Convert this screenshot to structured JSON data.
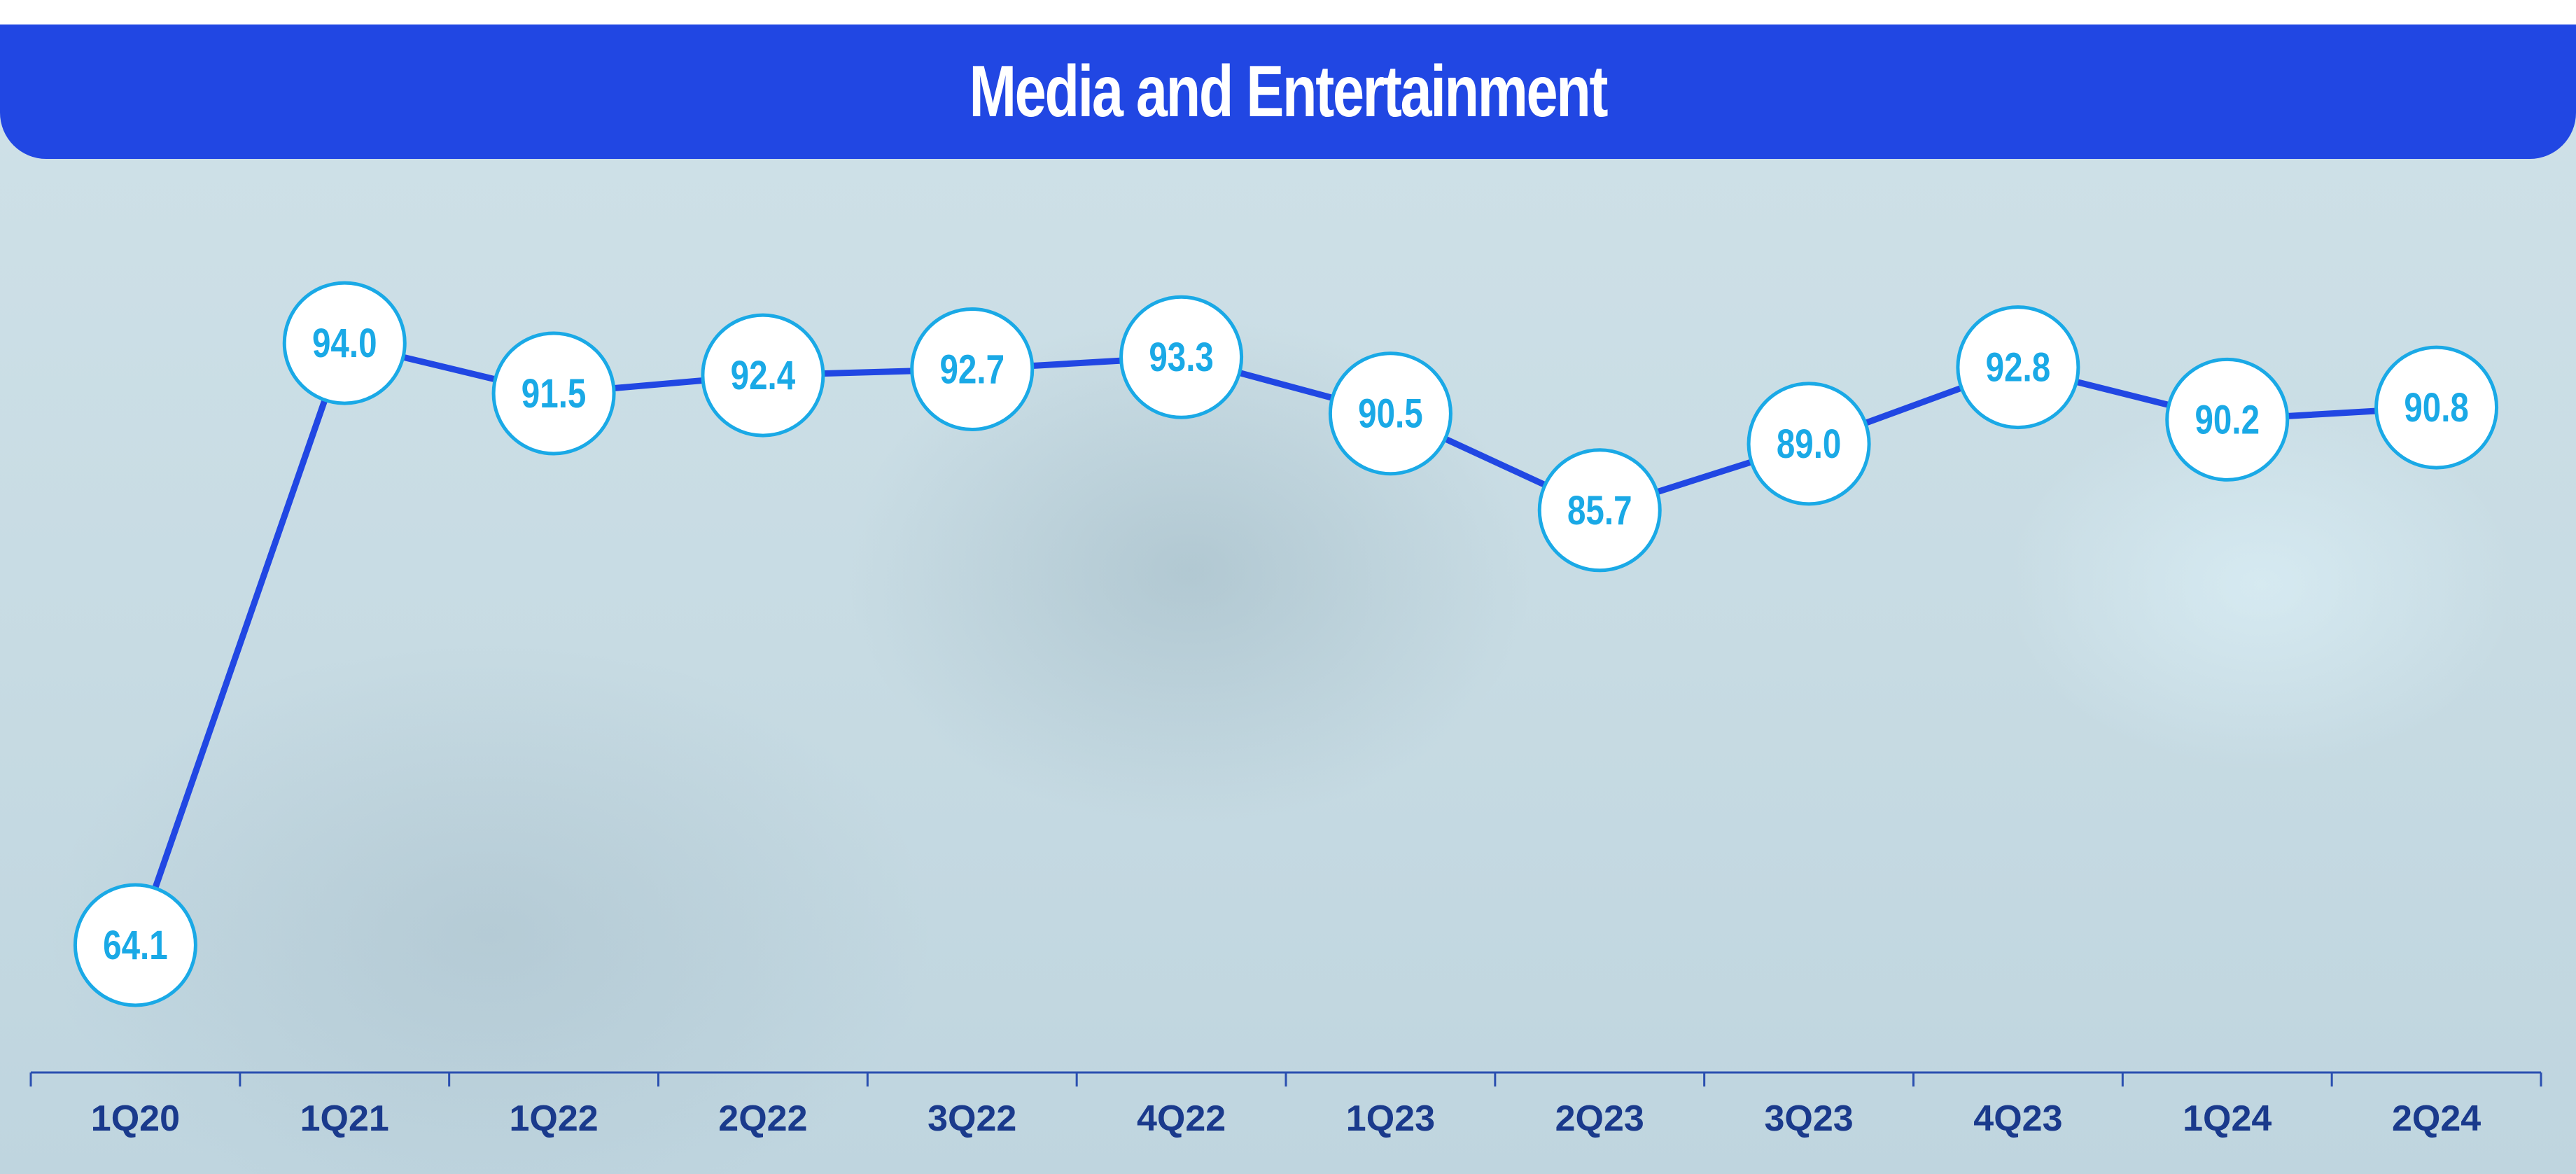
{
  "chart_data": {
    "type": "line",
    "title": "Media and Entertainment",
    "categories": [
      "1Q20",
      "1Q21",
      "1Q22",
      "2Q22",
      "3Q22",
      "4Q22",
      "1Q23",
      "2Q23",
      "3Q23",
      "4Q23",
      "1Q24",
      "2Q24"
    ],
    "series": [
      {
        "values": [
          64.1,
          94.0,
          91.5,
          92.4,
          92.7,
          93.3,
          90.5,
          85.7,
          89.0,
          92.8,
          90.2,
          90.8
        ]
      }
    ],
    "data_labels": [
      "64.1",
      "94.0",
      "91.5",
      "92.4",
      "92.7",
      "93.3",
      "90.5",
      "85.7",
      "89.0",
      "92.8",
      "90.2",
      "90.8"
    ],
    "xlabel": "",
    "ylabel": "",
    "grid": false,
    "legend": "none"
  },
  "colors": {
    "title_bar": "#2147e3",
    "line": "#2147e3",
    "marker_fill": "#ffffff",
    "marker_border": "#1aa9e6",
    "data_label": "#1aa9e6",
    "axis": "#2a4fb0",
    "tick_label": "#1a3a8c"
  }
}
